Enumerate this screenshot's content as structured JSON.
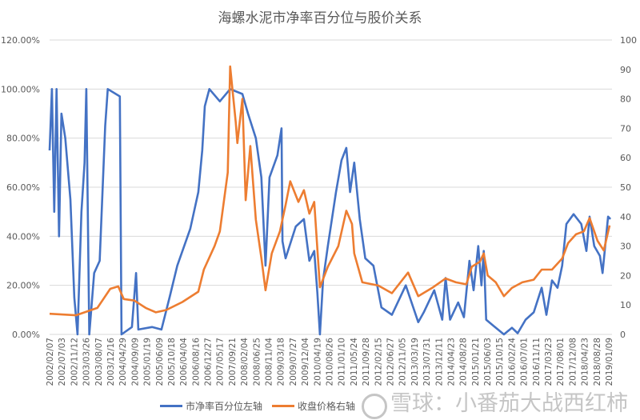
{
  "chart_data": {
    "type": "line",
    "title": "海螺水泥市净率百分位与股价关系",
    "grid": true,
    "legend_position": "bottom",
    "y_left": {
      "range": [
        0,
        120
      ],
      "ticks": [
        "0.00%",
        "20.00%",
        "40.00%",
        "60.00%",
        "80.00%",
        "100.00%",
        "120.00%"
      ]
    },
    "y_right": {
      "range": [
        0,
        100
      ],
      "ticks": [
        "0",
        "10",
        "20",
        "30",
        "40",
        "50",
        "60",
        "70",
        "80",
        "90",
        "100"
      ]
    },
    "x_ticks": [
      "2002/02/07",
      "2002/07/03",
      "2002/11/12",
      "2003/03/26",
      "2003/08/07",
      "2003/12/16",
      "2004/04/29",
      "2004/09/09",
      "2005/01/19",
      "2005/06/09",
      "2005/10/18",
      "2006/04/04",
      "2006/08/16",
      "2006/12/27",
      "2007/05/17",
      "2007/09/21",
      "2008/02/04",
      "2008/06/25",
      "2008/11/04",
      "2009/03/18",
      "2009/07/27",
      "2009/12/04",
      "2010/04/19",
      "2010/08/26",
      "2011/01/10",
      "2011/05/24",
      "2011/09/28",
      "2012/02/15",
      "2012/06/27",
      "2012/11/05",
      "2013/03/19",
      "2013/07/31",
      "2013/12/11",
      "2014/04/23",
      "2014/08/28",
      "2015/01/21",
      "2015/06/03",
      "2015/10/15",
      "2016/02/24",
      "2016/07/01",
      "2016/11/11",
      "2017/03/23",
      "2017/08/01",
      "2017/12/08",
      "2018/04/23",
      "2018/08/28",
      "2019/01/09"
    ],
    "series": [
      {
        "name": "市净率百分位左轴",
        "axis": "left",
        "unit": "%",
        "color": "#4472C4",
        "points": [
          [
            "2002-02-07",
            75
          ],
          [
            "2002-03-05",
            100
          ],
          [
            "2002-03-30",
            50
          ],
          [
            "2002-04-25",
            100
          ],
          [
            "2002-05-22",
            40
          ],
          [
            "2002-06-18",
            90
          ],
          [
            "2002-07-30",
            80
          ],
          [
            "2002-09-25",
            55
          ],
          [
            "2002-11-07",
            15
          ],
          [
            "2002-12-13",
            0
          ],
          [
            "2003-01-25",
            50
          ],
          [
            "2003-03-01",
            70
          ],
          [
            "2003-03-20",
            100
          ],
          [
            "2003-04-22",
            0
          ],
          [
            "2003-06-15",
            25
          ],
          [
            "2003-08-15",
            30
          ],
          [
            "2003-10-15",
            85
          ],
          [
            "2003-11-12",
            100
          ],
          [
            "2004-03-25",
            97
          ],
          [
            "2004-04-12",
            0
          ],
          [
            "2004-08-05",
            3
          ],
          [
            "2004-09-20",
            25
          ],
          [
            "2004-10-15",
            2
          ],
          [
            "2005-03-15",
            3
          ],
          [
            "2005-06-28",
            2
          ],
          [
            "2005-09-25",
            15
          ],
          [
            "2005-12-20",
            28
          ],
          [
            "2006-05-12",
            43
          ],
          [
            "2006-08-10",
            58
          ],
          [
            "2006-09-22",
            75
          ],
          [
            "2006-10-20",
            93
          ],
          [
            "2006-12-10",
            100
          ],
          [
            "2007-04-05",
            95
          ],
          [
            "2007-07-28",
            100
          ],
          [
            "2007-12-10",
            98
          ],
          [
            "2008-02-10",
            90
          ],
          [
            "2008-05-07",
            80
          ],
          [
            "2008-07-07",
            64
          ],
          [
            "2008-08-22",
            28
          ],
          [
            "2008-10-05",
            64
          ],
          [
            "2009-01-01",
            73
          ],
          [
            "2009-02-15",
            84
          ],
          [
            "2009-02-25",
            38
          ],
          [
            "2009-04-01",
            31
          ],
          [
            "2009-07-22",
            44
          ],
          [
            "2009-10-20",
            47
          ],
          [
            "2009-12-20",
            30
          ],
          [
            "2010-02-12",
            34
          ],
          [
            "2010-03-18",
            17
          ],
          [
            "2010-04-15",
            0
          ],
          [
            "2010-05-20",
            22
          ],
          [
            "2010-07-12",
            36
          ],
          [
            "2010-10-10",
            58
          ],
          [
            "2010-12-10",
            71
          ],
          [
            "2011-02-01",
            76
          ],
          [
            "2011-03-15",
            58
          ],
          [
            "2011-04-30",
            70
          ],
          [
            "2011-06-30",
            47
          ],
          [
            "2011-08-30",
            31
          ],
          [
            "2011-11-28",
            28
          ],
          [
            "2012-02-25",
            11
          ],
          [
            "2012-06-20",
            8
          ],
          [
            "2012-11-20",
            20
          ],
          [
            "2013-04-07",
            5
          ],
          [
            "2013-06-07",
            9
          ],
          [
            "2013-10-01",
            18
          ],
          [
            "2013-12-28",
            6
          ],
          [
            "2014-02-03",
            23
          ],
          [
            "2014-03-25",
            6
          ],
          [
            "2014-06-22",
            13
          ],
          [
            "2014-08-25",
            7
          ],
          [
            "2014-10-25",
            30
          ],
          [
            "2014-12-10",
            18
          ],
          [
            "2015-01-30",
            36
          ],
          [
            "2015-03-07",
            20
          ],
          [
            "2015-04-01",
            34
          ],
          [
            "2015-04-28",
            6
          ],
          [
            "2015-07-15",
            3.6
          ],
          [
            "2015-11-10",
            0
          ],
          [
            "2016-02-07",
            2.7
          ],
          [
            "2016-04-10",
            0.5
          ],
          [
            "2016-07-07",
            6
          ],
          [
            "2016-10-05",
            9
          ],
          [
            "2017-01-01",
            19
          ],
          [
            "2017-02-22",
            8
          ],
          [
            "2017-04-25",
            22
          ],
          [
            "2017-06-25",
            19
          ],
          [
            "2017-08-15",
            28
          ],
          [
            "2017-10-01",
            45
          ],
          [
            "2017-12-20",
            49
          ],
          [
            "2018-03-15",
            45
          ],
          [
            "2018-05-10",
            34
          ],
          [
            "2018-06-15",
            48
          ],
          [
            "2018-08-05",
            36
          ],
          [
            "2018-10-07",
            32
          ],
          [
            "2018-11-05",
            25
          ],
          [
            "2019-01-05",
            48
          ],
          [
            "2019-02-01",
            47
          ]
        ]
      },
      {
        "name": "收盘价格右轴",
        "axis": "right",
        "color": "#ED7D31",
        "points": [
          [
            "2002-02-07",
            7
          ],
          [
            "2002-11-25",
            6.5
          ],
          [
            "2003-07-20",
            9
          ],
          [
            "2003-12-10",
            15.5
          ],
          [
            "2004-03-07",
            16.3
          ],
          [
            "2004-05-07",
            12
          ],
          [
            "2004-09-01",
            11.5
          ],
          [
            "2005-01-05",
            9
          ],
          [
            "2005-04-28",
            7.5
          ],
          [
            "2005-08-20",
            8.3
          ],
          [
            "2006-02-15",
            11
          ],
          [
            "2006-08-10",
            14.5
          ],
          [
            "2006-10-10",
            22
          ],
          [
            "2007-02-05",
            30
          ],
          [
            "2007-04-05",
            35
          ],
          [
            "2007-07-01",
            55
          ],
          [
            "2007-07-28",
            91
          ],
          [
            "2007-09-28",
            72
          ],
          [
            "2007-10-15",
            65
          ],
          [
            "2007-12-10",
            80
          ],
          [
            "2008-01-15",
            45.6
          ],
          [
            "2008-03-07",
            64
          ],
          [
            "2008-05-07",
            39
          ],
          [
            "2008-07-07",
            26
          ],
          [
            "2008-08-22",
            15
          ],
          [
            "2008-10-30",
            27.5
          ],
          [
            "2009-01-28",
            35
          ],
          [
            "2009-04-01",
            44
          ],
          [
            "2009-05-22",
            52
          ],
          [
            "2009-08-20",
            45
          ],
          [
            "2009-10-20",
            49
          ],
          [
            "2009-12-20",
            41
          ],
          [
            "2010-02-12",
            45
          ],
          [
            "2010-04-15",
            16
          ],
          [
            "2010-07-12",
            23
          ],
          [
            "2010-11-05",
            30
          ],
          [
            "2011-02-01",
            42
          ],
          [
            "2011-04-05",
            37.5
          ],
          [
            "2011-04-30",
            27.5
          ],
          [
            "2011-07-28",
            17.7
          ],
          [
            "2012-01-20",
            16.6
          ],
          [
            "2012-06-20",
            14
          ],
          [
            "2012-12-15",
            21
          ],
          [
            "2013-04-07",
            13
          ],
          [
            "2013-09-07",
            15.8
          ],
          [
            "2014-02-03",
            19
          ],
          [
            "2014-05-28",
            17.7
          ],
          [
            "2014-09-20",
            17
          ],
          [
            "2014-11-20",
            23
          ],
          [
            "2015-02-18",
            24.7
          ],
          [
            "2015-04-01",
            27.5
          ],
          [
            "2015-05-15",
            20
          ],
          [
            "2015-08-12",
            17.7
          ],
          [
            "2015-11-10",
            13
          ],
          [
            "2016-02-07",
            15.8
          ],
          [
            "2016-06-01",
            17.7
          ],
          [
            "2016-10-05",
            18.6
          ],
          [
            "2017-01-01",
            22
          ],
          [
            "2017-04-25",
            22
          ],
          [
            "2017-08-15",
            25.8
          ],
          [
            "2017-10-20",
            31
          ],
          [
            "2018-01-15",
            34
          ],
          [
            "2018-04-12",
            35
          ],
          [
            "2018-06-15",
            39.5
          ],
          [
            "2018-09-10",
            31.8
          ],
          [
            "2018-11-18",
            28.5
          ],
          [
            "2019-01-22",
            37
          ]
        ]
      }
    ]
  },
  "legend": {
    "left_label": "市净率百分位左轴",
    "right_label": "收盘价格右轴"
  },
  "watermark": "雪球：小番茄大战西红柿"
}
